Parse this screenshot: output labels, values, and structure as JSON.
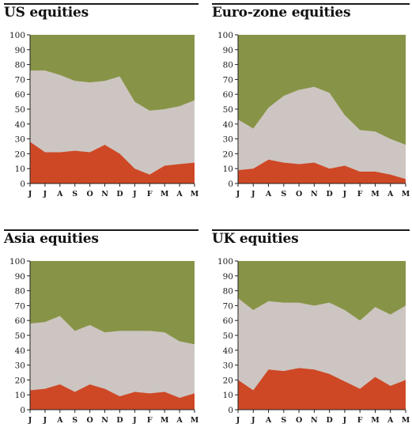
{
  "colors": {
    "top": "#879447",
    "middle": "#cdc5c1",
    "bottom": "#ce4826",
    "axis": "#222222"
  },
  "chart_data": [
    {
      "type": "area",
      "title": "US equities",
      "categories": [
        "J",
        "J",
        "A",
        "S",
        "O",
        "N",
        "D",
        "J",
        "F",
        "M",
        "A",
        "M"
      ],
      "ylim": [
        0,
        100
      ],
      "yticks": [
        0,
        10,
        20,
        30,
        40,
        50,
        60,
        70,
        80,
        90,
        100
      ],
      "grid": false,
      "series": [
        {
          "values": [
            28,
            21,
            21,
            22,
            21,
            26,
            20,
            10,
            6,
            12,
            13,
            14
          ]
        },
        {
          "values": [
            76,
            76,
            73,
            69,
            68,
            69,
            72,
            55,
            49,
            50,
            52,
            56
          ]
        },
        {
          "values": [
            100,
            100,
            100,
            100,
            100,
            100,
            100,
            100,
            100,
            100,
            100,
            100
          ]
        }
      ]
    },
    {
      "type": "area",
      "title": "Euro-zone equities",
      "categories": [
        "J",
        "J",
        "A",
        "S",
        "O",
        "N",
        "D",
        "J",
        "F",
        "M",
        "A",
        "M"
      ],
      "ylim": [
        0,
        100
      ],
      "yticks": [
        0,
        10,
        20,
        30,
        40,
        50,
        60,
        70,
        80,
        90,
        100
      ],
      "grid": false,
      "series": [
        {
          "values": [
            9,
            10,
            16,
            14,
            13,
            14,
            10,
            12,
            8,
            8,
            6,
            3
          ]
        },
        {
          "values": [
            43,
            37,
            51,
            59,
            63,
            65,
            61,
            46,
            36,
            35,
            30,
            26
          ]
        },
        {
          "values": [
            100,
            100,
            100,
            100,
            100,
            100,
            100,
            100,
            100,
            100,
            100,
            100
          ]
        }
      ]
    },
    {
      "type": "area",
      "title": "Asia equities",
      "categories": [
        "J",
        "J",
        "A",
        "S",
        "O",
        "N",
        "D",
        "J",
        "F",
        "M",
        "A",
        "M"
      ],
      "ylim": [
        0,
        100
      ],
      "yticks": [
        0,
        10,
        20,
        30,
        40,
        50,
        60,
        70,
        80,
        90,
        100
      ],
      "grid": false,
      "series": [
        {
          "values": [
            13,
            14,
            17,
            12,
            17,
            14,
            9,
            12,
            11,
            12,
            8,
            11
          ]
        },
        {
          "values": [
            58,
            59,
            63,
            53,
            57,
            52,
            53,
            53,
            53,
            52,
            46,
            44
          ]
        },
        {
          "values": [
            100,
            100,
            100,
            100,
            100,
            100,
            100,
            100,
            100,
            100,
            100,
            100
          ]
        }
      ]
    },
    {
      "type": "area",
      "title": "UK equities",
      "categories": [
        "J",
        "J",
        "A",
        "S",
        "O",
        "N",
        "D",
        "J",
        "F",
        "M",
        "A",
        "M"
      ],
      "ylim": [
        0,
        100
      ],
      "yticks": [
        0,
        10,
        20,
        30,
        40,
        50,
        60,
        70,
        80,
        90,
        100
      ],
      "grid": false,
      "series": [
        {
          "values": [
            20,
            13,
            27,
            26,
            28,
            27,
            24,
            19,
            14,
            22,
            16,
            20
          ]
        },
        {
          "values": [
            75,
            67,
            73,
            72,
            72,
            70,
            72,
            67,
            60,
            69,
            64,
            70
          ]
        },
        {
          "values": [
            100,
            100,
            100,
            100,
            100,
            100,
            100,
            100,
            100,
            100,
            100,
            100
          ]
        }
      ]
    }
  ]
}
